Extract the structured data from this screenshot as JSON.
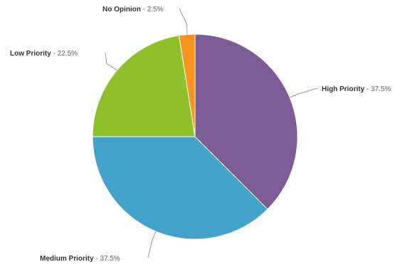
{
  "chart_data": {
    "type": "pie",
    "title": "",
    "slices": [
      {
        "label": "High Priority",
        "value": 37.5,
        "display": "37.5%",
        "color": "#7b5c96"
      },
      {
        "label": "Medium Priority",
        "value": 37.5,
        "display": "37.5%",
        "color": "#42a2c9"
      },
      {
        "label": "Low Priority",
        "value": 22.5,
        "display": "22.5%",
        "color": "#8fc02a"
      },
      {
        "label": "No Opinion",
        "value": 2.5,
        "display": "2.5%",
        "color": "#f7931e"
      }
    ],
    "start_angle": "12 o'clock",
    "direction": "clockwise",
    "legend": "none",
    "label_connector_color": "#999999"
  }
}
